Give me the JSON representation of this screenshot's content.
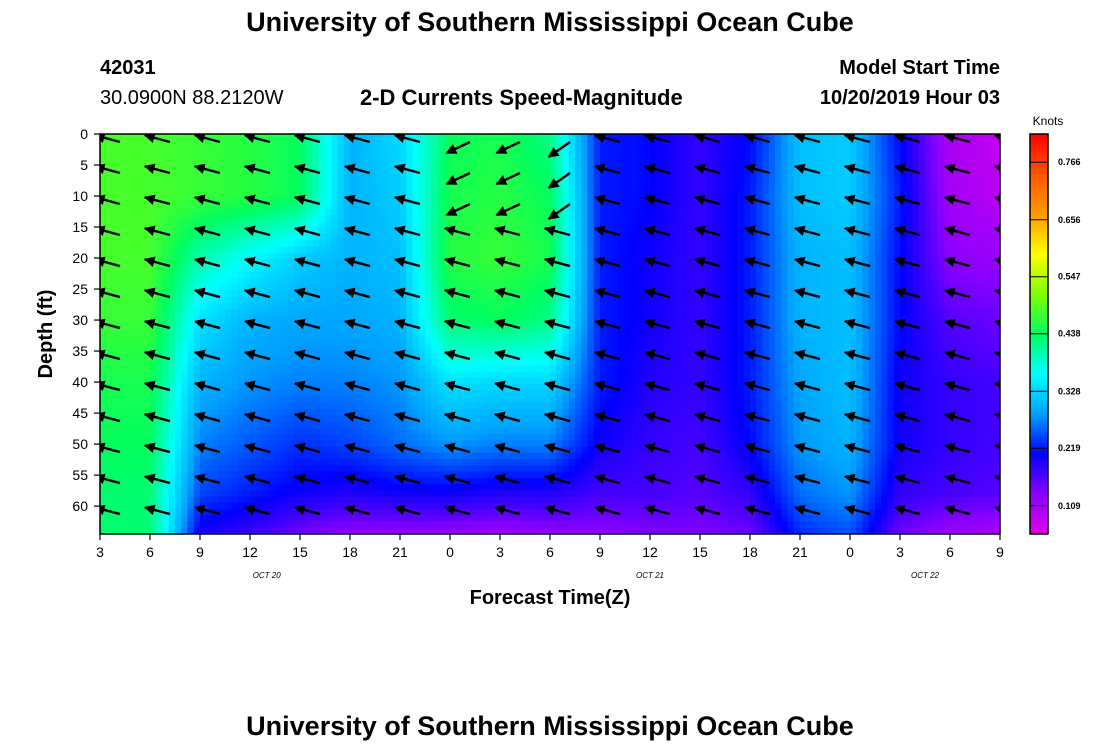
{
  "header": {
    "title": "University of Southern Mississippi Ocean Cube",
    "station_id": "42031",
    "station_coords": "30.0900N 88.2120W",
    "subtitle": "2-D Currents Speed-Magnitude",
    "model_label": "Model Start Time",
    "model_time": "10/20/2019 Hour 03",
    "footer_title": "University of Southern Mississippi Ocean Cube"
  },
  "chart_data": {
    "type": "heatmap",
    "title": "2-D Currents Speed-Magnitude",
    "xlabel": "Forecast Time(Z)",
    "ylabel": "Depth (ft)",
    "x_ticks": [
      "3",
      "6",
      "9",
      "12",
      "15",
      "18",
      "21",
      "0",
      "3",
      "6",
      "9",
      "12",
      "15",
      "18",
      "21",
      "0",
      "3",
      "6",
      "9"
    ],
    "x_range_hours": [
      0,
      54
    ],
    "date_labels": [
      {
        "text": "OCT 20",
        "hour": 10
      },
      {
        "text": "OCT 21",
        "hour": 33
      },
      {
        "text": "OCT 22",
        "hour": 49.5
      }
    ],
    "y_ticks": [
      "0",
      "5",
      "10",
      "15",
      "20",
      "25",
      "30",
      "35",
      "40",
      "45",
      "50",
      "55",
      "60"
    ],
    "ylim": [
      64.5,
      0
    ],
    "y_inverted": true,
    "colorbar": {
      "label": "Knots",
      "ticks": [
        "0.766",
        "0.656",
        "0.547",
        "0.438",
        "0.328",
        "0.219",
        "0.109"
      ],
      "tick_values": [
        0.766,
        0.656,
        0.547,
        0.438,
        0.328,
        0.219,
        0.109
      ],
      "range": [
        0.055,
        0.82
      ],
      "colors": [
        "#e000e8",
        "#8a00ff",
        "#0000ff",
        "#00a0ff",
        "#00ffff",
        "#00ff60",
        "#80ff00",
        "#ffff00",
        "#ff9900",
        "#ff5500",
        "#ff0000"
      ]
    },
    "time_hours": [
      0,
      3,
      6,
      9,
      12,
      15,
      18,
      21,
      24,
      27,
      30,
      33,
      36,
      39,
      42,
      45,
      48,
      51,
      54
    ],
    "depth_ft": [
      0,
      5,
      10,
      15,
      20,
      25,
      30,
      35,
      40,
      45,
      50,
      55,
      60,
      64
    ],
    "speed_knots": [
      [
        0.48,
        0.48,
        0.48,
        0.47,
        0.45,
        0.44,
        0.43,
        0.43
      ],
      [
        0.48,
        0.48,
        0.48,
        0.47,
        0.45,
        0.44,
        0.43,
        0.43
      ],
      [
        0.47,
        0.47,
        0.4,
        0.34,
        0.3,
        0.27,
        0.24,
        0.2
      ],
      [
        0.46,
        0.46,
        0.36,
        0.3,
        0.28,
        0.25,
        0.22,
        0.18
      ],
      [
        0.44,
        0.44,
        0.32,
        0.29,
        0.27,
        0.23,
        0.2,
        0.15
      ],
      [
        0.3,
        0.3,
        0.3,
        0.29,
        0.27,
        0.24,
        0.19,
        0.13
      ],
      [
        0.33,
        0.32,
        0.31,
        0.3,
        0.28,
        0.26,
        0.2,
        0.13
      ],
      [
        0.44,
        0.45,
        0.46,
        0.43,
        0.34,
        0.28,
        0.2,
        0.13
      ],
      [
        0.45,
        0.46,
        0.47,
        0.44,
        0.33,
        0.27,
        0.19,
        0.12
      ],
      [
        0.42,
        0.44,
        0.45,
        0.42,
        0.33,
        0.27,
        0.19,
        0.13
      ],
      [
        0.22,
        0.22,
        0.22,
        0.22,
        0.22,
        0.2,
        0.17,
        0.13
      ],
      [
        0.21,
        0.21,
        0.2,
        0.2,
        0.19,
        0.18,
        0.17,
        0.14
      ],
      [
        0.18,
        0.18,
        0.18,
        0.18,
        0.18,
        0.17,
        0.16,
        0.14
      ],
      [
        0.21,
        0.22,
        0.22,
        0.22,
        0.22,
        0.21,
        0.18,
        0.15
      ],
      [
        0.31,
        0.31,
        0.3,
        0.3,
        0.29,
        0.28,
        0.26,
        0.23
      ],
      [
        0.32,
        0.32,
        0.31,
        0.31,
        0.31,
        0.3,
        0.28,
        0.25
      ],
      [
        0.21,
        0.22,
        0.21,
        0.21,
        0.2,
        0.2,
        0.18,
        0.15
      ],
      [
        0.1,
        0.11,
        0.13,
        0.16,
        0.18,
        0.18,
        0.17,
        0.12
      ],
      [
        0.08,
        0.09,
        0.12,
        0.15,
        0.17,
        0.17,
        0.16,
        0.11
      ]
    ],
    "arrow_depths_ft": [
      0,
      5,
      10,
      15,
      20,
      25,
      30,
      35,
      40,
      45,
      50,
      55,
      60
    ],
    "arrow_times_hours": [
      0,
      3,
      6,
      9,
      12,
      15,
      18,
      21,
      24,
      27,
      30,
      33,
      36,
      39,
      42,
      45,
      48,
      51,
      54
    ]
  }
}
